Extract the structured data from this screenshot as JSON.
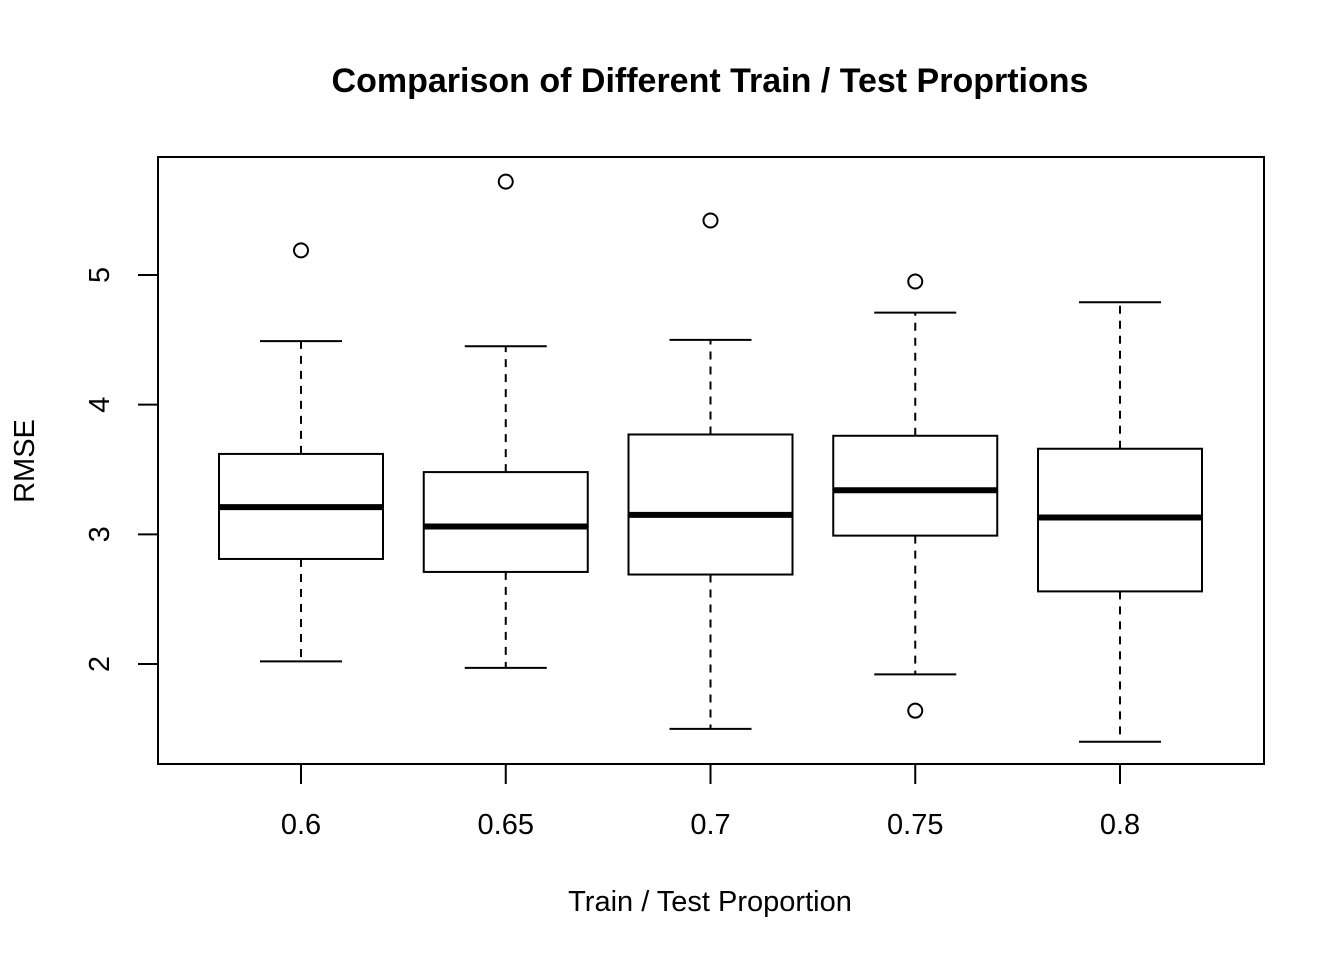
{
  "chart_data": {
    "type": "boxplot",
    "title": "Comparison of Different Train / Test Proprtions",
    "xlabel": "Train / Test Proportion",
    "ylabel": "RMSE",
    "categories": [
      "0.6",
      "0.65",
      "0.7",
      "0.75",
      "0.8"
    ],
    "yticks": [
      "2",
      "3",
      "4",
      "5"
    ],
    "ylim": [
      1.3,
      5.9
    ],
    "grid": false,
    "legend": "none",
    "boxes": [
      {
        "category": "0.6",
        "whisker_low": 2.02,
        "q1": 2.81,
        "median": 3.21,
        "q3": 3.62,
        "whisker_high": 4.49,
        "outliers": [
          5.19
        ]
      },
      {
        "category": "0.65",
        "whisker_low": 1.97,
        "q1": 2.71,
        "median": 3.06,
        "q3": 3.48,
        "whisker_high": 4.45,
        "outliers": [
          5.72
        ]
      },
      {
        "category": "0.7",
        "whisker_low": 1.5,
        "q1": 2.69,
        "median": 3.15,
        "q3": 3.77,
        "whisker_high": 4.5,
        "outliers": [
          5.42
        ]
      },
      {
        "category": "0.75",
        "whisker_low": 1.92,
        "q1": 2.99,
        "median": 3.34,
        "q3": 3.76,
        "whisker_high": 4.71,
        "outliers": [
          4.95,
          1.64
        ]
      },
      {
        "category": "0.8",
        "whisker_low": 1.4,
        "q1": 2.56,
        "median": 3.13,
        "q3": 3.66,
        "whisker_high": 4.79,
        "outliers": []
      }
    ]
  }
}
